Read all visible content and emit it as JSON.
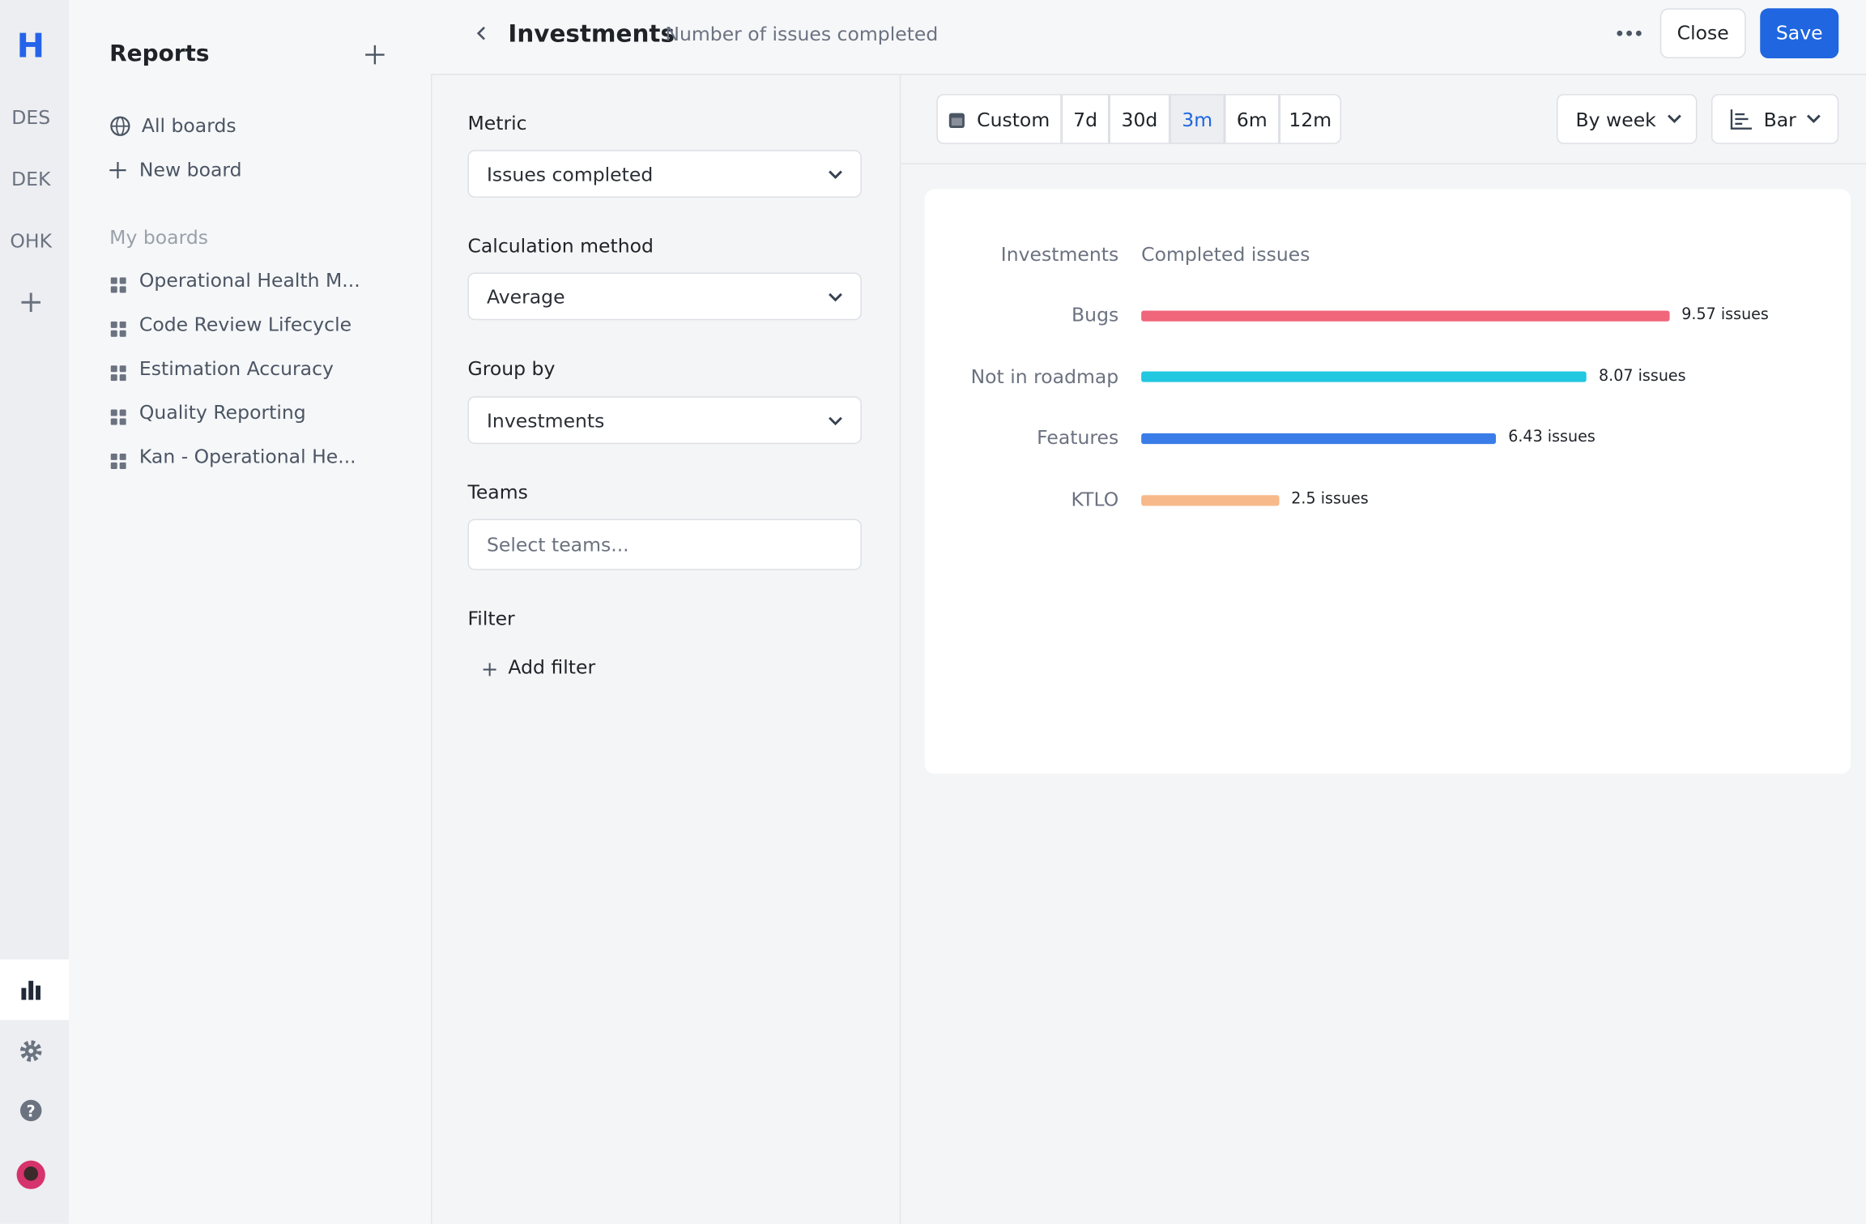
{
  "rail": {
    "workspaces": [
      "DES",
      "DEK",
      "OHK"
    ]
  },
  "reports": {
    "title": "Reports",
    "all_boards": "All boards",
    "new_board": "New board",
    "section": "My boards",
    "boards": [
      "Operational Health M...",
      "Code Review Lifecycle",
      "Estimation Accuracy",
      "Quality Reporting",
      "Kan - Operational He..."
    ]
  },
  "header": {
    "title": "Investments",
    "subtitle": "Number of issues completed",
    "close": "Close",
    "save": "Save"
  },
  "form": {
    "metric_label": "Metric",
    "metric": "Issues completed",
    "calc_label": "Calculation method",
    "calc": "Average",
    "group_label": "Group by",
    "group": "Investments",
    "teams_label": "Teams",
    "teams_placeholder": "Select teams...",
    "filter_label": "Filter",
    "add_filter": "Add filter"
  },
  "toolbar": {
    "ranges": [
      "Custom",
      "7d",
      "30d",
      "3m",
      "6m",
      "12m"
    ],
    "active_range": "3m",
    "interval": "By week",
    "chart_type": "Bar"
  },
  "chart_data": {
    "type": "bar",
    "orientation": "horizontal",
    "category_header": "Investments",
    "value_header": "Completed issues",
    "categories": [
      "Bugs",
      "Not in roadmap",
      "Features",
      "KTLO"
    ],
    "values": [
      9.57,
      8.07,
      6.43,
      2.5
    ],
    "value_labels": [
      "9.57 issues",
      "8.07 issues",
      "6.43 issues",
      "2.5 issues"
    ],
    "colors": [
      "#f0667a",
      "#22c7e0",
      "#3b7de8",
      "#f7b98a"
    ]
  }
}
